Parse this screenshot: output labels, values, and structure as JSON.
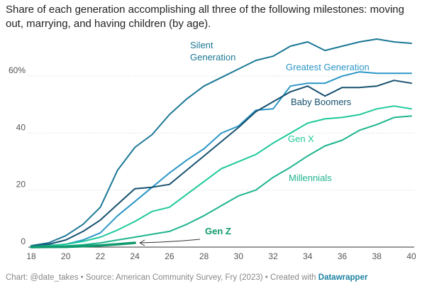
{
  "chart_data": {
    "type": "line",
    "title": "Share of each generation accomplishing all three of the following milestones: moving out, marrying, and having children (by age).",
    "xlabel": "",
    "ylabel": "",
    "xlim": [
      18,
      40
    ],
    "ylim": [
      0,
      73
    ],
    "x_ticks": [
      18,
      20,
      22,
      24,
      26,
      28,
      30,
      32,
      34,
      36,
      38,
      40
    ],
    "y_ticks": [
      {
        "value": 0,
        "label": "0"
      },
      {
        "value": 20,
        "label": "20"
      },
      {
        "value": 40,
        "label": "40"
      },
      {
        "value": 60,
        "label": "60%"
      }
    ],
    "grid": "horizontal",
    "series": [
      {
        "name": "Silent Generation",
        "label_lines": [
          "Silent",
          "Generation"
        ],
        "color": "#1b7895",
        "x": [
          18,
          19,
          20,
          21,
          22,
          23,
          24,
          25,
          26,
          27,
          28,
          29,
          30,
          31,
          32,
          33,
          34,
          35,
          36,
          37,
          38,
          39,
          40
        ],
        "y": [
          0.5,
          1.5,
          4,
          8,
          14,
          27,
          35,
          39.5,
          46.5,
          52,
          56.5,
          59.5,
          62.5,
          65.5,
          67,
          70.5,
          72,
          69,
          70.5,
          72,
          73,
          72,
          71.5
        ]
      },
      {
        "name": "Greatest Generation",
        "label_lines": [
          "Greatest Generation"
        ],
        "color": "#2a96c6",
        "x": [
          18,
          19,
          20,
          21,
          22,
          23,
          24,
          25,
          26,
          27,
          28,
          29,
          30,
          31,
          32,
          33,
          34,
          35,
          36,
          37,
          38,
          39,
          40
        ],
        "y": [
          0.3,
          0.6,
          1,
          2.5,
          5,
          11,
          16,
          21,
          26,
          30.5,
          34.5,
          40,
          42.5,
          48,
          48.5,
          56.5,
          57.5,
          57.5,
          60,
          61.5,
          61,
          61,
          61
        ]
      },
      {
        "name": "Baby Boomers",
        "label_lines": [
          "Baby Boomers"
        ],
        "color": "#16506e",
        "x": [
          18,
          19,
          20,
          21,
          22,
          23,
          24,
          25,
          26,
          27,
          28,
          29,
          30,
          31,
          32,
          33,
          34,
          35,
          36,
          37,
          38,
          39,
          40
        ],
        "y": [
          0.3,
          1,
          2.5,
          5.5,
          9.5,
          15,
          20.5,
          21,
          22,
          27,
          32,
          37,
          42,
          47.5,
          51,
          54.5,
          56.5,
          53,
          56,
          56,
          56.5,
          58.5,
          57.5
        ]
      },
      {
        "name": "Gen X",
        "label_lines": [
          "Gen X"
        ],
        "color": "#1ec99a",
        "x": [
          18,
          19,
          20,
          21,
          22,
          23,
          24,
          25,
          26,
          27,
          28,
          29,
          30,
          31,
          32,
          33,
          34,
          35,
          36,
          37,
          38,
          39,
          40
        ],
        "y": [
          0.2,
          0.5,
          1,
          2,
          3.5,
          6,
          9,
          12.5,
          14,
          18.5,
          23,
          27.5,
          30,
          32.5,
          36.5,
          40,
          43.5,
          45,
          45.5,
          46.5,
          48.5,
          49.5,
          48.5
        ]
      },
      {
        "name": "Millennials",
        "label_lines": [
          "Millennials"
        ],
        "color": "#1fb48e",
        "x": [
          18,
          19,
          20,
          21,
          22,
          23,
          24,
          25,
          26,
          27,
          28,
          29,
          30,
          31,
          32,
          33,
          34,
          35,
          36,
          37,
          38,
          39,
          40
        ],
        "y": [
          0.1,
          0.2,
          0.4,
          0.8,
          1.5,
          2.5,
          3.5,
          4.5,
          5.5,
          8,
          11,
          14.5,
          18,
          20,
          24.5,
          28,
          32,
          35.5,
          37.5,
          41,
          43,
          45.5,
          46
        ]
      },
      {
        "name": "Gen Z",
        "label_lines": [
          "Gen Z"
        ],
        "color": "#0f9a6e",
        "x": [
          18,
          19,
          20,
          21,
          22,
          23,
          24
        ],
        "y": [
          0,
          0.05,
          0.1,
          0.3,
          0.6,
          1,
          1.5
        ]
      }
    ]
  },
  "footer": {
    "chart_credit": "Chart: @date_takes",
    "source": "Source: American Community Survey, Fry (2023)",
    "created_with": "Created with",
    "tool": "Datawrapper"
  }
}
